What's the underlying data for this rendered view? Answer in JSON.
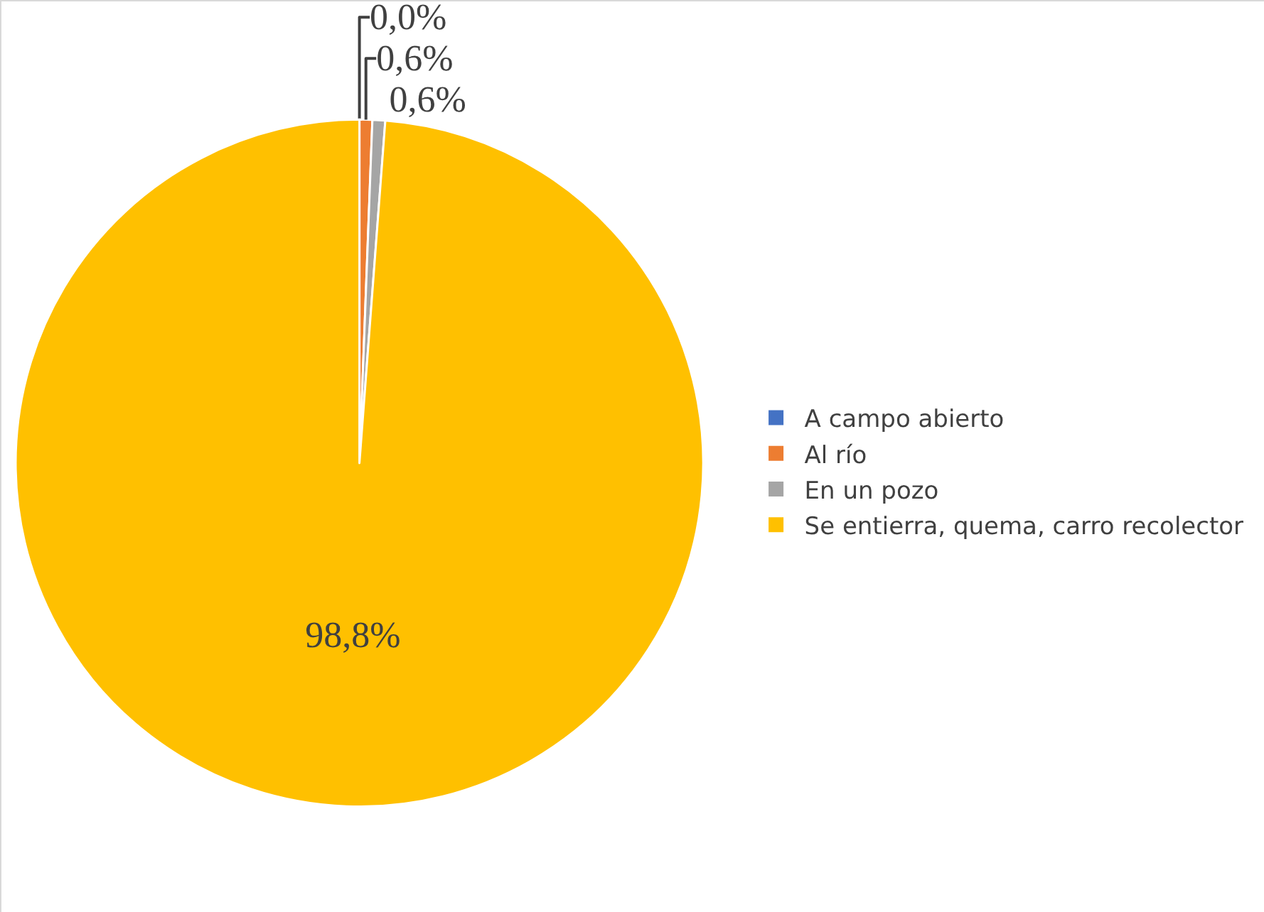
{
  "chart_data": {
    "type": "pie",
    "categories": [
      "A campo abierto",
      "Al río",
      "En un pozo",
      "Se entierra, quema, carro recolector"
    ],
    "values": [
      0,
      0.6,
      0.6,
      98.8
    ],
    "colors": [
      "#4472c4",
      "#ed7d31",
      "#a5a5a5",
      "#ffc000"
    ],
    "value_labels": [
      "0,0%",
      "0,6%",
      "0,6%",
      "98,8%"
    ],
    "legend": "right"
  }
}
